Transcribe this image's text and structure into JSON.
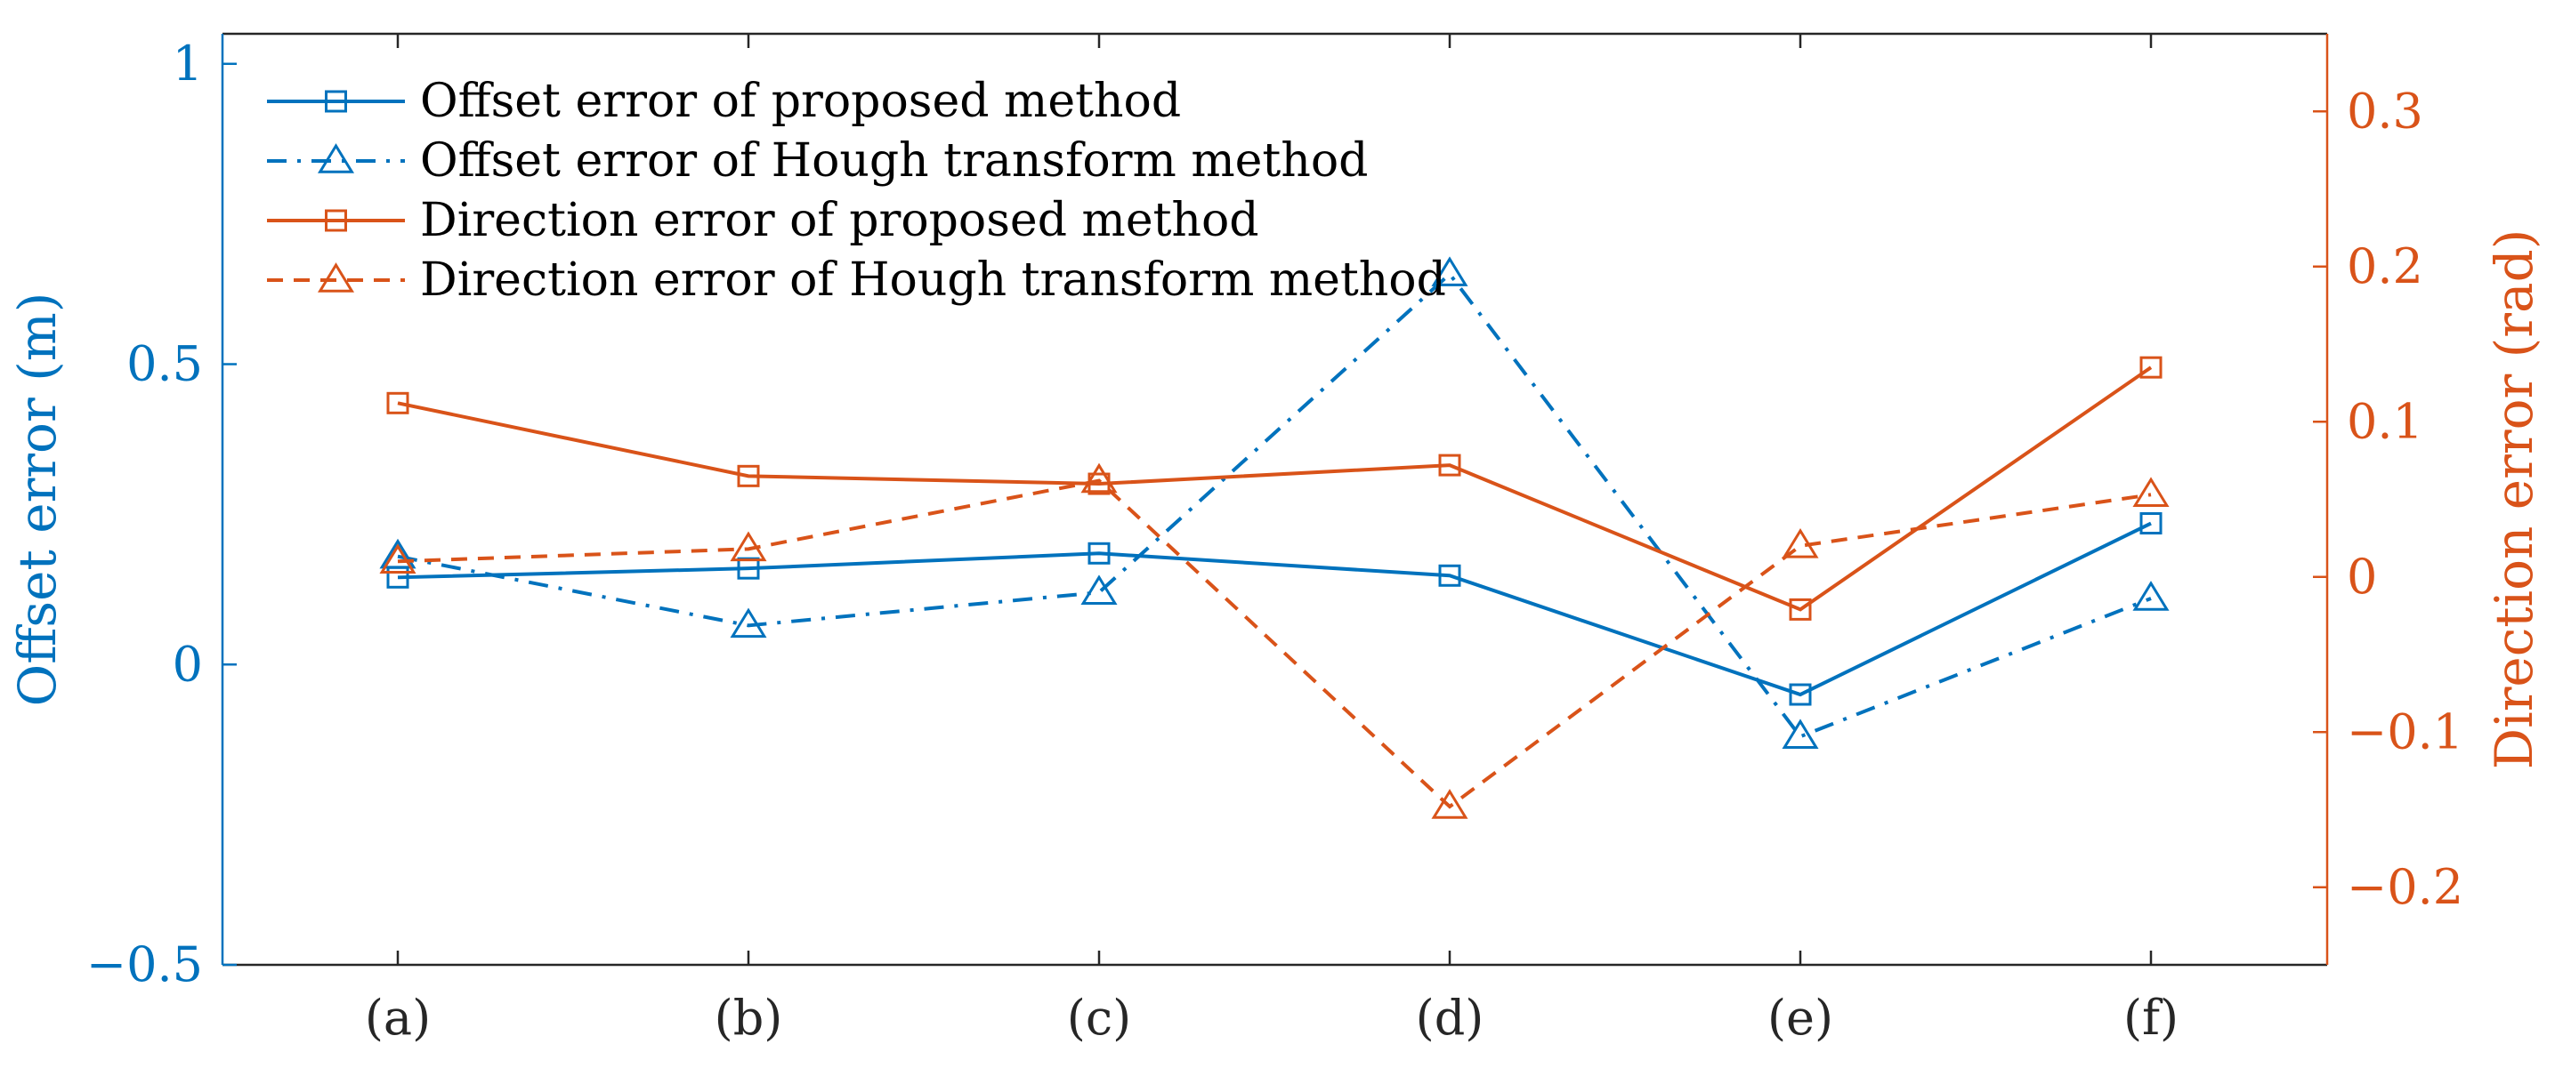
{
  "chart_data": {
    "type": "line",
    "categories": [
      "(a)",
      "(b)",
      "(c)",
      "(d)",
      "(e)",
      "(f)"
    ],
    "left_axis": {
      "label": "Offset error (m)",
      "ylim": [
        -0.5,
        1.05
      ],
      "ticks": [
        -0.5,
        0,
        0.5,
        1
      ],
      "tick_labels": [
        "−0.5",
        "0",
        "0.5",
        "1"
      ],
      "color": "#0072bd"
    },
    "right_axis": {
      "label": "Direction error (rad)",
      "ylim": [
        -0.25,
        0.35
      ],
      "ticks": [
        -0.2,
        -0.1,
        0,
        0.1,
        0.2,
        0.3
      ],
      "tick_labels": [
        "−0.2",
        "−0.1",
        "0",
        "0.1",
        "0.2",
        "0.3"
      ],
      "color": "#d95319"
    },
    "series": [
      {
        "name": "Offset error of proposed method",
        "axis": "left",
        "color": "#0072bd",
        "dash": "solid",
        "marker": "square",
        "values": [
          0.145,
          0.16,
          0.185,
          0.148,
          -0.05,
          0.235
        ]
      },
      {
        "name": "Offset error of Hough transform method",
        "axis": "left",
        "color": "#0072bd",
        "dash": "dashdot",
        "marker": "triangle",
        "values": [
          0.18,
          0.065,
          0.12,
          0.65,
          -0.12,
          0.11
        ]
      },
      {
        "name": "Direction error of proposed method",
        "axis": "right",
        "color": "#d95319",
        "dash": "solid",
        "marker": "square",
        "values": [
          0.112,
          0.065,
          0.06,
          0.072,
          -0.021,
          0.135
        ]
      },
      {
        "name": "Direction error of Hough transform method",
        "axis": "right",
        "color": "#d95319",
        "dash": "dashed",
        "marker": "triangle",
        "values": [
          0.01,
          0.018,
          0.062,
          -0.148,
          0.02,
          0.053
        ]
      }
    ],
    "legend_position": "top-left",
    "grid": false
  }
}
